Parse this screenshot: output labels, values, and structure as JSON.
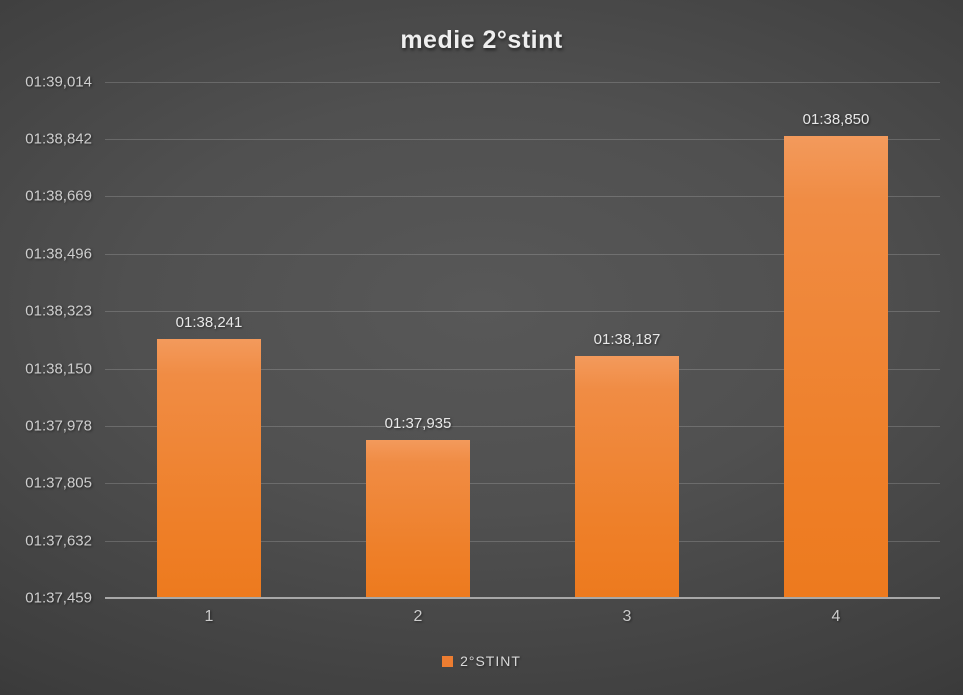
{
  "title": "medie 2°stint",
  "legend": {
    "label": "2°STINT",
    "marker_color": "#ED7D31"
  },
  "chart_data": {
    "type": "bar",
    "title": "medie 2°stint",
    "series_name": "2°STINT",
    "categories": [
      "1",
      "2",
      "3",
      "4"
    ],
    "values": [
      98.241,
      97.935,
      98.187,
      98.85
    ],
    "value_labels": [
      "01:38,241",
      "01:37,935",
      "01:38,187",
      "01:38,850"
    ],
    "xlabel": "",
    "ylabel": "",
    "ylim": [
      97.459,
      99.014
    ],
    "y_ticks": [
      {
        "value": 97.459,
        "label": "01:37,459"
      },
      {
        "value": 97.632,
        "label": "01:37,632"
      },
      {
        "value": 97.805,
        "label": "01:37,805"
      },
      {
        "value": 97.978,
        "label": "01:37,978"
      },
      {
        "value": 98.15,
        "label": "01:38,150"
      },
      {
        "value": 98.323,
        "label": "01:38,323"
      },
      {
        "value": 98.496,
        "label": "01:38,496"
      },
      {
        "value": 98.669,
        "label": "01:38,669"
      },
      {
        "value": 98.842,
        "label": "01:38,842"
      },
      {
        "value": 99.014,
        "label": "01:39,014"
      }
    ],
    "grid": true,
    "legend_position": "bottom",
    "colors": {
      "bar_top": "#F39A5C",
      "bar_bottom": "#ED7A1E",
      "legend_marker": "#ED7D31",
      "background_center": "#565656",
      "background_edge": "#232323",
      "gridline": "rgba(255,255,255,0.17)",
      "axis_line": "#A8A8A8",
      "text": "#CFCFCF"
    }
  }
}
